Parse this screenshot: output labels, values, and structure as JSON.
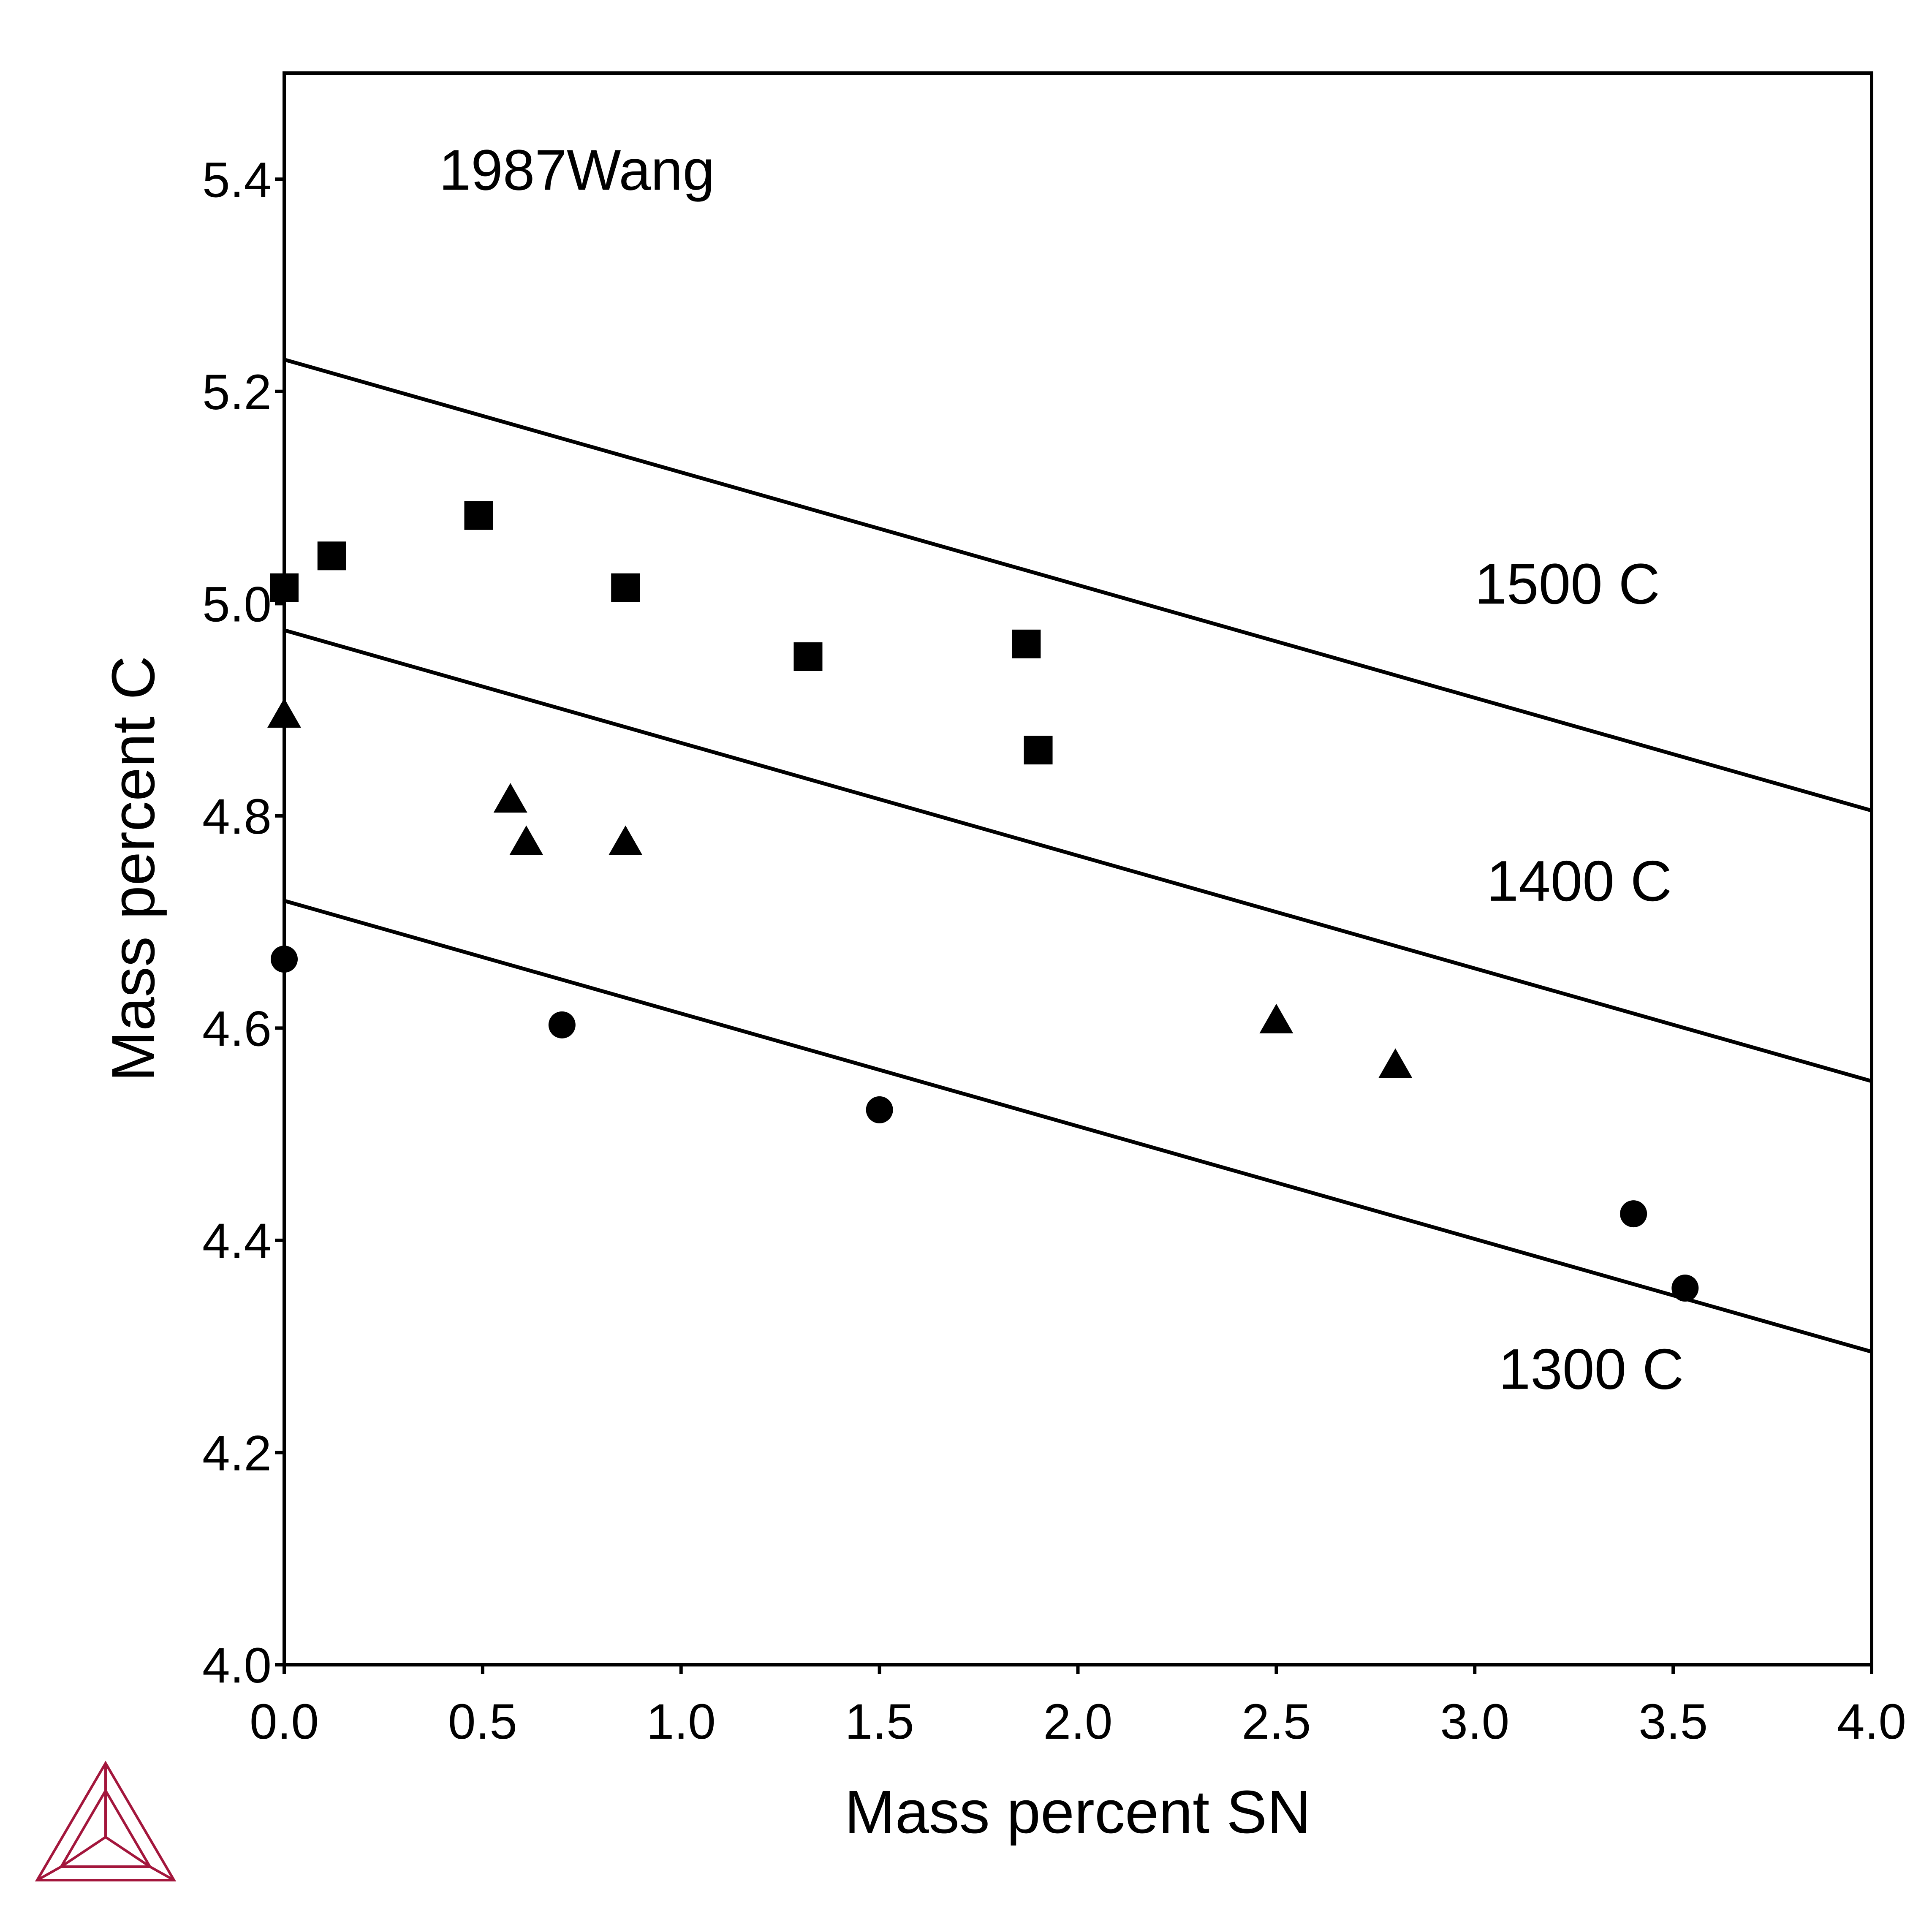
{
  "chart_data": {
    "type": "scatter",
    "title": "",
    "xlabel": "Mass percent SN",
    "ylabel": "Mass percent C",
    "xlim": [
      0.0,
      4.0
    ],
    "ylim": [
      4.0,
      5.5
    ],
    "x_ticks": [
      0.0,
      0.5,
      1.0,
      1.5,
      2.0,
      2.5,
      3.0,
      3.5,
      4.0
    ],
    "y_ticks": [
      4.0,
      4.2,
      4.4,
      4.6,
      4.8,
      5.0,
      5.2,
      5.4
    ],
    "x_tick_labels": [
      "0.0",
      "0.5",
      "1.0",
      "1.5",
      "2.0",
      "2.5",
      "3.0",
      "3.5",
      "4.0"
    ],
    "y_tick_labels": [
      "4.0",
      "4.2",
      "4.4",
      "4.6",
      "4.8",
      "5.0",
      "5.2",
      "5.4"
    ],
    "grid": false,
    "legend": "none",
    "annotations": [
      {
        "text": "1987Wang",
        "x": 0.39,
        "y": 5.39
      },
      {
        "text": "1500 C",
        "x": 3.0,
        "y": 5.0
      },
      {
        "text": "1400 C",
        "x": 3.03,
        "y": 4.72
      },
      {
        "text": "1300 C",
        "x": 3.06,
        "y": 4.26
      }
    ],
    "lines": [
      {
        "label": "1500 C",
        "x": [
          0.0,
          4.0
        ],
        "y": [
          5.23,
          4.805
        ]
      },
      {
        "label": "1400 C",
        "x": [
          0.0,
          4.0
        ],
        "y": [
          4.975,
          4.55
        ]
      },
      {
        "label": "1300 C",
        "x": [
          0.0,
          4.0
        ],
        "y": [
          4.72,
          4.295
        ]
      }
    ],
    "series": [
      {
        "marker": "square",
        "x": [
          0.0,
          0.12,
          0.49,
          0.86,
          1.32,
          1.87,
          1.9
        ],
        "y": [
          5.015,
          5.045,
          5.083,
          5.015,
          4.95,
          4.962,
          4.862
        ]
      },
      {
        "marker": "triangle",
        "x": [
          0.0,
          0.57,
          0.61,
          0.86,
          2.5,
          2.8
        ],
        "y": [
          4.895,
          4.815,
          4.775,
          4.775,
          4.607,
          4.565
        ]
      },
      {
        "marker": "circle",
        "x": [
          0.0,
          0.7,
          1.5,
          3.4,
          3.53
        ],
        "y": [
          4.665,
          4.603,
          4.523,
          4.425,
          4.355
        ]
      }
    ],
    "colors": {
      "ink": "#000000",
      "logo": "#a3163c"
    }
  }
}
